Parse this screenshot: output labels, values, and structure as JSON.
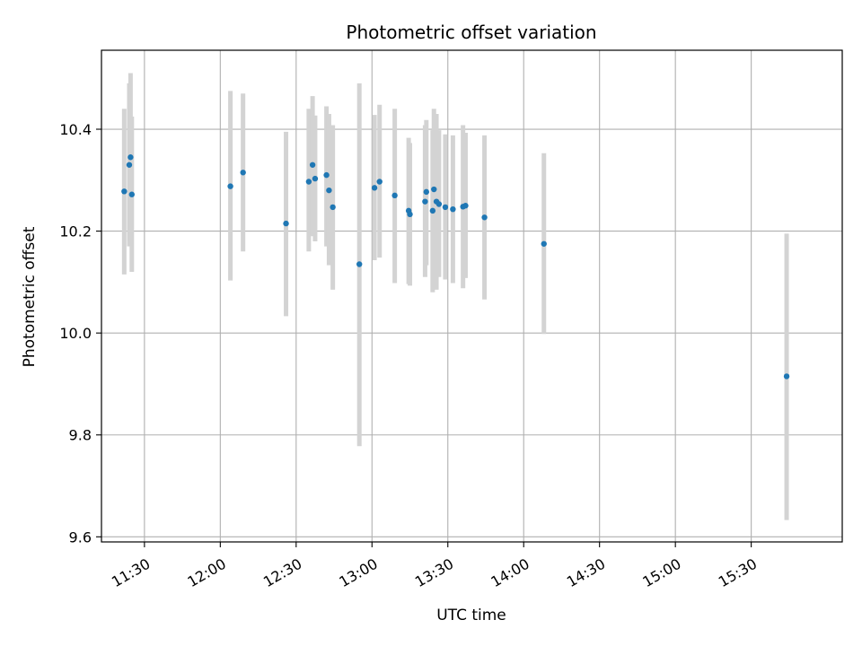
{
  "chart_data": {
    "type": "scatter",
    "title": "Photometric offset variation",
    "xlabel": "UTC time",
    "ylabel": "Photometric offset",
    "x_axis_type": "time",
    "xlim": [
      "11:13",
      "16:06"
    ],
    "ylim": [
      9.59,
      10.555
    ],
    "x_ticks": [
      "11:30",
      "12:00",
      "12:30",
      "13:00",
      "13:30",
      "14:00",
      "14:30",
      "15:00",
      "15:30"
    ],
    "y_ticks": [
      9.6,
      9.8,
      10.0,
      10.2,
      10.4
    ],
    "y_tick_labels": [
      "9.6",
      "9.8",
      "10.0",
      "10.2",
      "10.4"
    ],
    "grid": true,
    "marker_color": "#1f77b4",
    "errorbar_color": "#d3d3d3",
    "points": [
      {
        "x": "11:22",
        "y": 10.278,
        "low": 10.115,
        "high": 10.44
      },
      {
        "x": "11:24",
        "y": 10.33,
        "low": 10.17,
        "high": 10.49
      },
      {
        "x": "11:24.5",
        "y": 10.345,
        "low": 10.18,
        "high": 10.51
      },
      {
        "x": "11:25",
        "y": 10.272,
        "low": 10.12,
        "high": 10.425
      },
      {
        "x": "12:04",
        "y": 10.288,
        "low": 10.103,
        "high": 10.475
      },
      {
        "x": "12:09",
        "y": 10.315,
        "low": 10.16,
        "high": 10.47
      },
      {
        "x": "12:26",
        "y": 10.215,
        "low": 10.033,
        "high": 10.395
      },
      {
        "x": "12:35",
        "y": 10.297,
        "low": 10.16,
        "high": 10.44
      },
      {
        "x": "12:36.5",
        "y": 10.33,
        "low": 10.19,
        "high": 10.465
      },
      {
        "x": "12:37.5",
        "y": 10.303,
        "low": 10.18,
        "high": 10.427
      },
      {
        "x": "12:42",
        "y": 10.31,
        "low": 10.17,
        "high": 10.445
      },
      {
        "x": "12:43",
        "y": 10.28,
        "low": 10.133,
        "high": 10.43
      },
      {
        "x": "12:44.5",
        "y": 10.247,
        "low": 10.085,
        "high": 10.408
      },
      {
        "x": "12:55",
        "y": 10.135,
        "low": 9.778,
        "high": 10.49
      },
      {
        "x": "13:01",
        "y": 10.285,
        "low": 10.143,
        "high": 10.428
      },
      {
        "x": "13:03",
        "y": 10.297,
        "low": 10.148,
        "high": 10.448
      },
      {
        "x": "13:09",
        "y": 10.27,
        "low": 10.098,
        "high": 10.44
      },
      {
        "x": "13:14.5",
        "y": 10.24,
        "low": 10.096,
        "high": 10.383
      },
      {
        "x": "13:15",
        "y": 10.233,
        "low": 10.093,
        "high": 10.373
      },
      {
        "x": "13:21",
        "y": 10.258,
        "low": 10.11,
        "high": 10.408
      },
      {
        "x": "13:21.5",
        "y": 10.277,
        "low": 10.133,
        "high": 10.418
      },
      {
        "x": "13:24",
        "y": 10.24,
        "low": 10.08,
        "high": 10.398
      },
      {
        "x": "13:24.5",
        "y": 10.282,
        "low": 10.123,
        "high": 10.44
      },
      {
        "x": "13:25.5",
        "y": 10.258,
        "low": 10.085,
        "high": 10.43
      },
      {
        "x": "13:26.5",
        "y": 10.253,
        "low": 10.11,
        "high": 10.398
      },
      {
        "x": "13:29",
        "y": 10.247,
        "low": 10.105,
        "high": 10.39
      },
      {
        "x": "13:32",
        "y": 10.243,
        "low": 10.098,
        "high": 10.388
      },
      {
        "x": "13:36",
        "y": 10.248,
        "low": 10.088,
        "high": 10.408
      },
      {
        "x": "13:37",
        "y": 10.25,
        "low": 10.108,
        "high": 10.393
      },
      {
        "x": "13:44.5",
        "y": 10.227,
        "low": 10.066,
        "high": 10.388
      },
      {
        "x": "14:08",
        "y": 10.175,
        "low": 9.998,
        "high": 10.353
      },
      {
        "x": "15:44",
        "y": 9.915,
        "low": 9.633,
        "high": 10.195
      }
    ]
  }
}
